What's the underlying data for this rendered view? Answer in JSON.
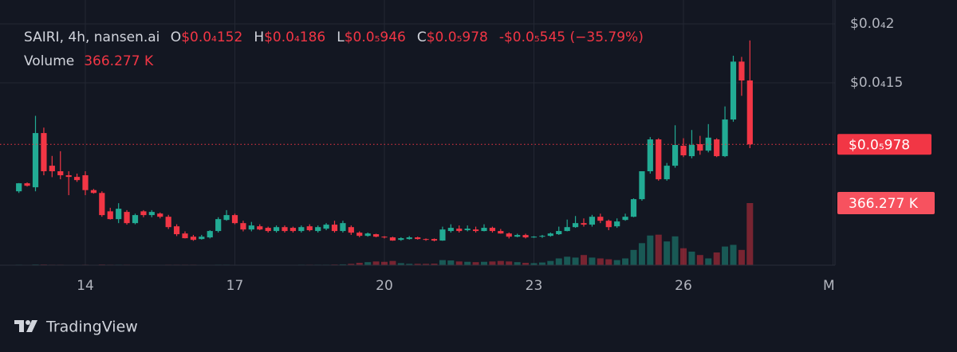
{
  "chart_data": {
    "type": "candlestick",
    "x": [
      12.667,
      12.833,
      13,
      13.167,
      13.333,
      13.5,
      13.667,
      13.833,
      14,
      14.167,
      14.333,
      14.5,
      14.667,
      14.833,
      15,
      15.167,
      15.333,
      15.5,
      15.667,
      15.833,
      16,
      16.167,
      16.333,
      16.5,
      16.667,
      16.833,
      17,
      17.167,
      17.333,
      17.5,
      17.667,
      17.833,
      18,
      18.167,
      18.333,
      18.5,
      18.667,
      18.833,
      19,
      19.167,
      19.333,
      19.5,
      19.667,
      19.833,
      20,
      20.167,
      20.333,
      20.5,
      20.667,
      20.833,
      21,
      21.167,
      21.333,
      21.5,
      21.667,
      21.833,
      22,
      22.167,
      22.333,
      22.5,
      22.667,
      22.833,
      23,
      23.167,
      23.333,
      23.5,
      23.667,
      23.833,
      24,
      24.167,
      24.333,
      24.5,
      24.667,
      24.833,
      25,
      25.167,
      25.333,
      25.5,
      25.667,
      25.833,
      26,
      26.167,
      26.333,
      26.5,
      26.667,
      26.833,
      27,
      27.167,
      27.333
    ],
    "open": [
      5.8e-06,
      6.48e-06,
      6.14e-06,
      1.074e-05,
      7.97e-06,
      7.5e-06,
      7.16e-06,
      7.02e-06,
      7.16e-06,
      5.9e-06,
      5.66e-06,
      4.1e-06,
      3.44e-06,
      4.05e-06,
      3.1e-06,
      4.1e-06,
      3.78e-06,
      3.91e-06,
      3.64e-06,
      2.83e-06,
      2.22e-06,
      1.95e-06,
      1.75e-06,
      1.89e-06,
      2.43e-06,
      3.37e-06,
      3.78e-06,
      3.1e-06,
      2.56e-06,
      2.83e-06,
      2.7e-06,
      2.43e-06,
      2.76e-06,
      2.7e-06,
      2.43e-06,
      2.83e-06,
      2.43e-06,
      2.63e-06,
      2.97e-06,
      2.43e-06,
      2.76e-06,
      2.29e-06,
      2.02e-06,
      2.16e-06,
      1.95e-06,
      1.89e-06,
      1.68e-06,
      1.75e-06,
      1.89e-06,
      1.75e-06,
      1.75e-06,
      1.62e-06,
      2.43e-06,
      2.63e-06,
      2.5e-06,
      2.56e-06,
      2.43e-06,
      2.7e-06,
      2.43e-06,
      2.22e-06,
      1.95e-06,
      2.09e-06,
      1.89e-06,
      1.95e-06,
      2.02e-06,
      2.16e-06,
      2.43e-06,
      2.76e-06,
      3.1e-06,
      2.97e-06,
      3.64e-06,
      3.3e-06,
      2.83e-06,
      3.37e-06,
      3.64e-06,
      5.13e-06,
      7.5e-06,
      1.02e-05,
      6.82e-06,
      7.97e-06,
      9.66e-06,
      8.78e-06,
      9.8e-06,
      9.25e-06,
      1.02e-05,
      8.78e-06,
      1.189e-05,
      1.68e-05,
      1.52e-05
    ],
    "high": [
      6.5e-06,
      6.55e-06,
      1.22e-05,
      1.12e-05,
      8.8e-06,
      9.2e-06,
      7.5e-06,
      7.3e-06,
      7.5e-06,
      6e-06,
      5.8e-06,
      4.4e-06,
      4.79e-06,
      4.2e-06,
      3.9e-06,
      4.2e-06,
      4.2e-06,
      4e-06,
      3.8e-06,
      3e-06,
      2.4e-06,
      2.1e-06,
      2.1e-06,
      2.5e-06,
      3.6e-06,
      4.2e-06,
      3.9e-06,
      3.3e-06,
      3.2e-06,
      3e-06,
      2.8e-06,
      2.9e-06,
      2.9e-06,
      2.8e-06,
      2.9e-06,
      3e-06,
      2.9e-06,
      3.1e-06,
      3.3e-06,
      3.3e-06,
      2.9e-06,
      2.4e-06,
      2.3e-06,
      2.2e-06,
      2e-06,
      1.95e-06,
      1.9e-06,
      2e-06,
      1.95e-06,
      1.8e-06,
      1.8e-06,
      2.8e-06,
      3e-06,
      2.9e-06,
      2.9e-06,
      2.8e-06,
      3e-06,
      2.8e-06,
      2.6e-06,
      2.3e-06,
      2.2e-06,
      2.2e-06,
      2e-06,
      2.1e-06,
      2.3e-06,
      2.8e-06,
      3.4e-06,
      3.7e-06,
      3.5e-06,
      3.8e-06,
      3.9e-06,
      3.4e-06,
      3.5e-06,
      3.9e-06,
      5.2e-06,
      7.5e-06,
      1.04e-05,
      1.03e-05,
      8.2e-06,
      1.14e-05,
      1.03e-05,
      1.1e-05,
      1.05e-05,
      1.15e-05,
      1.03e-05,
      1.3e-05,
      1.73e-05,
      1.72e-05,
      1.86e-05
    ],
    "low": [
      5.66e-06,
      6.2e-06,
      5.8e-06,
      7.16e-06,
      7e-06,
      6.82e-06,
      5.47e-06,
      6.6e-06,
      5.47e-06,
      5.6e-06,
      3.64e-06,
      3.4e-06,
      3.1e-06,
      2.97e-06,
      3e-06,
      3.6e-06,
      3.6e-06,
      3.5e-06,
      2.6e-06,
      2e-06,
      1.8e-06,
      1.6e-06,
      1.7e-06,
      1.8e-06,
      2.3e-06,
      3.3e-06,
      3e-06,
      2.4e-06,
      2.4e-06,
      2.5e-06,
      2.3e-06,
      2.3e-06,
      2.3e-06,
      2.3e-06,
      2.3e-06,
      2.4e-06,
      2.3e-06,
      2.5e-06,
      2.3e-06,
      2.3e-06,
      2.1e-06,
      1.9e-06,
      1.95e-06,
      1.9e-06,
      1.8e-06,
      1.6e-06,
      1.6e-06,
      1.7e-06,
      1.7e-06,
      1.6e-06,
      1.55e-06,
      1.6e-06,
      2.3e-06,
      2.3e-06,
      2.4e-06,
      2.3e-06,
      2.4e-06,
      2.3e-06,
      2.2e-06,
      1.8e-06,
      1.9e-06,
      1.8e-06,
      1.85e-06,
      1.85e-06,
      1.95e-06,
      2.1e-06,
      2.4e-06,
      2.7e-06,
      2.8e-06,
      2.8e-06,
      3.1e-06,
      2.5e-06,
      2.7e-06,
      3.3e-06,
      3.6e-06,
      5e-06,
      7.3e-06,
      6.7e-06,
      6.7e-06,
      7.8e-06,
      8.7e-06,
      8.6e-06,
      8.9e-06,
      9.1e-06,
      8.7e-06,
      8.7e-06,
      1.17e-05,
      1.39e-05,
      9.46e-06
    ],
    "close": [
      6.48e-06,
      6.27e-06,
      1.074e-05,
      7.5e-06,
      7.5e-06,
      7.16e-06,
      7.02e-06,
      6.75e-06,
      5.9e-06,
      5.66e-06,
      3.78e-06,
      3.44e-06,
      4.32e-06,
      3.1e-06,
      3.78e-06,
      3.78e-06,
      4.05e-06,
      3.64e-06,
      2.76e-06,
      2.16e-06,
      1.82e-06,
      1.68e-06,
      1.95e-06,
      2.43e-06,
      3.44e-06,
      3.78e-06,
      3.1e-06,
      2.56e-06,
      2.9e-06,
      2.56e-06,
      2.43e-06,
      2.76e-06,
      2.43e-06,
      2.43e-06,
      2.76e-06,
      2.5e-06,
      2.76e-06,
      2.97e-06,
      2.43e-06,
      3.1e-06,
      2.29e-06,
      2.02e-06,
      2.22e-06,
      1.95e-06,
      1.89e-06,
      1.62e-06,
      1.82e-06,
      1.89e-06,
      1.75e-06,
      1.68e-06,
      1.62e-06,
      2.56e-06,
      2.7e-06,
      2.43e-06,
      2.63e-06,
      2.43e-06,
      2.7e-06,
      2.43e-06,
      2.22e-06,
      1.95e-06,
      2.09e-06,
      1.89e-06,
      1.95e-06,
      2.02e-06,
      2.22e-06,
      2.43e-06,
      2.76e-06,
      3.1e-06,
      2.97e-06,
      3.64e-06,
      3.3e-06,
      2.76e-06,
      3.24e-06,
      3.64e-06,
      5.13e-06,
      7.5e-06,
      1.02e-05,
      6.82e-06,
      7.97e-06,
      9.73e-06,
      8.85e-06,
      9.73e-06,
      9.25e-06,
      1.035e-05,
      8.78e-06,
      1.189e-05,
      1.68e-05,
      1.52e-05,
      9.78e-06
    ],
    "volume": [
      3000,
      2000,
      4000,
      4000,
      3000,
      3000,
      2000,
      2000,
      3000,
      2000,
      4000,
      3000,
      3000,
      3000,
      2000,
      2000,
      2000,
      2000,
      3000,
      3000,
      3000,
      3000,
      2000,
      2000,
      3000,
      3000,
      2000,
      2000,
      2000,
      2000,
      2000,
      2000,
      2000,
      2000,
      3000,
      3000,
      3000,
      3000,
      4000,
      5000,
      8000,
      14000,
      18000,
      22000,
      20000,
      25000,
      12000,
      8000,
      8000,
      8000,
      9000,
      30000,
      28000,
      22000,
      20000,
      18000,
      20000,
      22000,
      25000,
      22000,
      18000,
      14000,
      12000,
      16000,
      25000,
      40000,
      50000,
      45000,
      60000,
      45000,
      40000,
      35000,
      30000,
      40000,
      90000,
      130000,
      175000,
      180000,
      140000,
      170000,
      100000,
      80000,
      60000,
      40000,
      75000,
      110000,
      120000,
      90000,
      366277
    ],
    "up_color": "#22ab94",
    "down_color": "#f23645",
    "xlim": [
      12.288,
      29.04
    ],
    "xticks": [
      14,
      17,
      20,
      23,
      26,
      {
        "value": 29,
        "label": "Ma"
      }
    ],
    "ylim": [
      -4.7e-07,
      2.2027e-05
    ],
    "yticks": [
      {
        "value": 2e-05,
        "label": "$0.0₄2"
      },
      {
        "value": 1.5e-05,
        "label": "$0.0₄15"
      }
    ],
    "grid": true
  },
  "header": {
    "symbol": "SAIRI, 4h, nansen.ai",
    "fields": [
      {
        "key": "O",
        "value": "$0.0₄152"
      },
      {
        "key": "H",
        "value": "$0.0₄186"
      },
      {
        "key": "L",
        "value": "$0.0₅946"
      },
      {
        "key": "C",
        "value": "$0.0₅978"
      }
    ],
    "change": "-$0.0₅545 (−35.79%)",
    "volume_key": "Volume",
    "volume_value": "366.277 K"
  },
  "brand": "TradingView"
}
